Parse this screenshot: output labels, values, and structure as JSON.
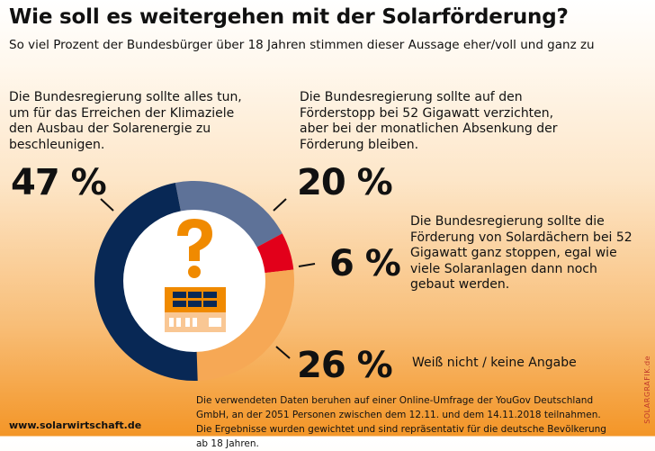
{
  "title": "Wie soll es weitergehen mit der Solarförderung?",
  "subtitle": "So viel Prozent der Bundesbürger über 18 Jahren stimmen dieser Aussage eher/voll und ganz zu",
  "chart_data": {
    "type": "pie",
    "title": "Wie soll es weitergehen mit der Solarförderung?",
    "unit": "%",
    "slices": [
      {
        "label": "Die Bundesregierung sollte auf den Förderstopp bei 52 Gigawatt verzichten, aber bei der monatlichen Absenkung der Förderung bleiben.",
        "value": 20,
        "display": "20 %",
        "color": "#5e7298"
      },
      {
        "label": "Die Bundesregierung sollte die Förderung von Solardächern bei 52 Gigawatt ganz stoppen, egal wie viele Solaranlagen dann noch gebaut werden.",
        "value": 6,
        "display": "6 %",
        "color": "#e2001a"
      },
      {
        "label": "Weiß nicht / keine Angabe",
        "value": 26,
        "display": "26 %",
        "color": "#f6a855"
      },
      {
        "label": "Die Bundesregierung sollte alles tun, um für das Erreichen der Klimaziele den Ausbau der Solarenergie zu beschleunigen.",
        "value": 47,
        "display": "47 %",
        "color": "#082855"
      }
    ]
  },
  "footer": {
    "website": "www.solarwirtschaft.de",
    "note": "Die verwendeten Daten beruhen auf einer Online-Umfrage der YouGov Deutschland GmbH, an der 2051 Personen zwischen dem 12.11. und dem 14.11.2018 teilnahmen. Die Ergebnisse wurden gewichtet und sind repräsentativ für die deutsche Bevölkerung ab 18 Jahren.",
    "credit": "SOLARGRAFIK.de"
  }
}
